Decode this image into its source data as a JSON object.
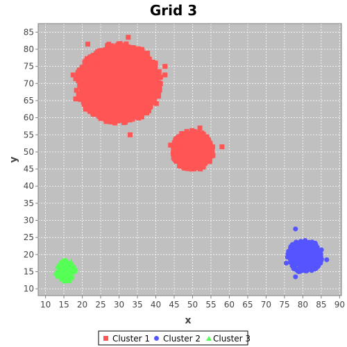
{
  "chart_data": {
    "type": "scatter",
    "title": "Grid 3",
    "xlabel": "x",
    "ylabel": "y",
    "xlim": [
      8,
      90.5
    ],
    "ylim": [
      8,
      87.5
    ],
    "xticks": [
      10,
      15,
      20,
      25,
      30,
      35,
      40,
      45,
      50,
      55,
      60,
      65,
      70,
      75,
      80,
      85,
      90
    ],
    "yticks": [
      10,
      15,
      20,
      25,
      30,
      35,
      40,
      45,
      50,
      55,
      60,
      65,
      70,
      75,
      80,
      85
    ],
    "grid": true,
    "legend_position": "bottom",
    "plot_background": "#c0c0c0",
    "series": [
      {
        "name": "Cluster 1",
        "color": "#ff5555",
        "marker": "square",
        "blobs": [
          {
            "center": [
              30,
              70
            ],
            "radius": [
              12,
              12
            ]
          },
          {
            "center": [
              50,
              50.5
            ],
            "radius": [
              6,
              6
            ]
          }
        ],
        "points": [
          [
            17.5,
            72.5
          ],
          [
            18.2,
            65.5
          ],
          [
            32.5,
            83.5
          ],
          [
            33,
            55
          ],
          [
            42.5,
            75
          ],
          [
            42.5,
            72.5
          ],
          [
            58,
            51.5
          ],
          [
            44,
            52
          ],
          [
            52,
            57
          ],
          [
            21.5,
            81.5
          ]
        ]
      },
      {
        "name": "Cluster 2",
        "color": "#5555ff",
        "marker": "circle",
        "blobs": [
          {
            "center": [
              80.5,
              19.5
            ],
            "radius": [
              5,
              5
            ]
          }
        ],
        "points": [
          [
            78,
            27.5
          ],
          [
            78,
            13.5
          ],
          [
            86.5,
            18.5
          ],
          [
            75.5,
            17.5
          ]
        ]
      },
      {
        "name": "Cluster 3",
        "color": "#55ff55",
        "marker": "triangle",
        "blobs": [
          {
            "center": [
              15.5,
              15.2
            ],
            "radius": [
              3,
              3.3
            ]
          }
        ],
        "points": []
      }
    ]
  }
}
